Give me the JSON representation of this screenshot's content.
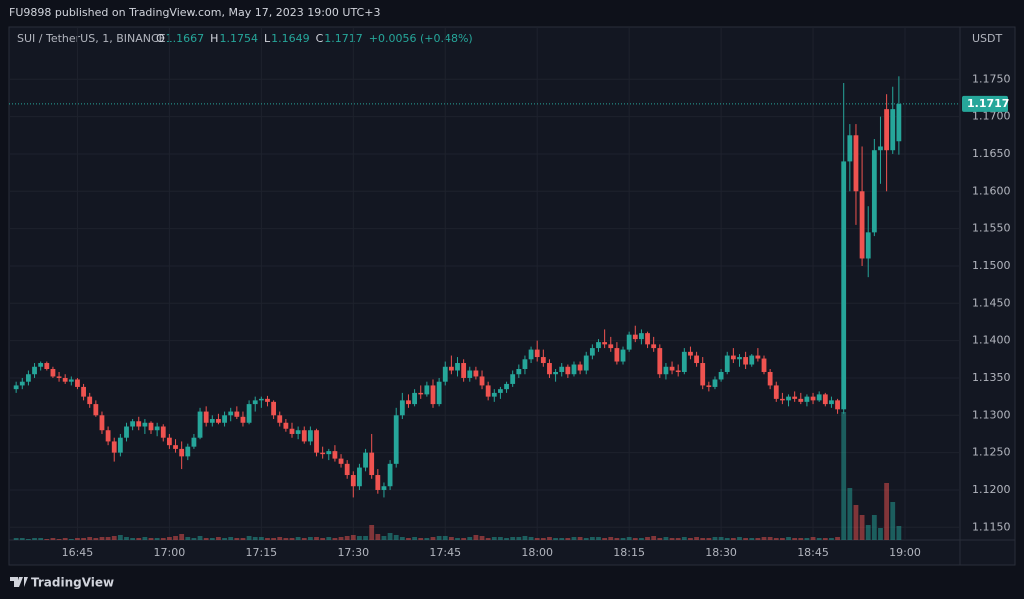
{
  "header": {
    "published": "FU9898 published on TradingView.com, May 17, 2023 19:00 UTC+3",
    "logo": "TradingView"
  },
  "chart_data": {
    "type": "candlestick",
    "symbol": "SUI / TetherUS, 1, BINANCE",
    "currency": "USDT",
    "legend_labels": [
      "O",
      "H",
      "L",
      "C"
    ],
    "change": "+0.0056 (+0.48%)",
    "up_color": "#26a69a",
    "down_color": "#ef5350",
    "grid": true,
    "ylim": [
      1.1133,
      1.182
    ],
    "yticks": [
      {
        "value": 1.115,
        "label": "1.1150"
      },
      {
        "value": 1.12,
        "label": "1.1200"
      },
      {
        "value": 1.125,
        "label": "1.1250"
      },
      {
        "value": 1.13,
        "label": "1.1300"
      },
      {
        "value": 1.135,
        "label": "1.1350"
      },
      {
        "value": 1.14,
        "label": "1.1400"
      },
      {
        "value": 1.145,
        "label": "1.1450"
      },
      {
        "value": 1.15,
        "label": "1.1500"
      },
      {
        "value": 1.155,
        "label": "1.1550"
      },
      {
        "value": 1.16,
        "label": "1.1600"
      },
      {
        "value": 1.165,
        "label": "1.1650"
      },
      {
        "value": 1.17,
        "label": "1.1700"
      },
      {
        "value": 1.175,
        "label": "1.1750"
      }
    ],
    "categories": [
      null,
      null,
      null,
      null,
      null,
      null,
      null,
      null,
      null,
      null,
      "16:45",
      null,
      null,
      null,
      null,
      null,
      null,
      null,
      null,
      null,
      null,
      null,
      null,
      null,
      null,
      "17:00",
      null,
      null,
      null,
      null,
      null,
      null,
      null,
      null,
      null,
      null,
      null,
      null,
      null,
      null,
      "17:15",
      null,
      null,
      null,
      null,
      null,
      null,
      null,
      null,
      null,
      null,
      null,
      null,
      null,
      null,
      "17:30",
      null,
      null,
      null,
      null,
      null,
      null,
      null,
      null,
      null,
      null,
      null,
      null,
      null,
      null,
      "17:45",
      null,
      null,
      null,
      null,
      null,
      null,
      null,
      null,
      null,
      null,
      null,
      null,
      null,
      null,
      "18:00",
      null,
      null,
      null,
      null,
      null,
      null,
      null,
      null,
      null,
      null,
      null,
      null,
      null,
      null,
      "18:15",
      null,
      null,
      null,
      null,
      null,
      null,
      null,
      null,
      null,
      null,
      null,
      null,
      null,
      null,
      "18:30",
      null,
      null,
      null,
      null,
      null,
      null,
      null,
      null,
      null,
      null,
      null,
      null,
      null,
      null,
      "18:45",
      null,
      null,
      null,
      null,
      null,
      null,
      null,
      null,
      null,
      null,
      null,
      null,
      null,
      null,
      "19:00"
    ],
    "ohlc": [
      [
        1.1335,
        1.1345,
        1.133,
        1.134
      ],
      [
        1.134,
        1.135,
        1.1335,
        1.1345
      ],
      [
        1.1345,
        1.136,
        1.134,
        1.1355
      ],
      [
        1.1355,
        1.137,
        1.135,
        1.1365
      ],
      [
        1.1365,
        1.1372,
        1.136,
        1.137
      ],
      [
        1.137,
        1.1372,
        1.136,
        1.1362
      ],
      [
        1.1362,
        1.1365,
        1.135,
        1.1352
      ],
      [
        1.1352,
        1.1358,
        1.1345,
        1.135
      ],
      [
        1.135,
        1.1355,
        1.1342,
        1.1345
      ],
      [
        1.1345,
        1.1352,
        1.134,
        1.1348
      ],
      [
        1.1348,
        1.135,
        1.1335,
        1.1338
      ],
      [
        1.1338,
        1.1342,
        1.132,
        1.1325
      ],
      [
        1.1325,
        1.133,
        1.131,
        1.1315
      ],
      [
        1.1315,
        1.132,
        1.1298,
        1.13
      ],
      [
        1.13,
        1.1305,
        1.1275,
        1.128
      ],
      [
        1.128,
        1.1285,
        1.126,
        1.1265
      ],
      [
        1.1265,
        1.127,
        1.1238,
        1.125
      ],
      [
        1.125,
        1.1275,
        1.1245,
        1.127
      ],
      [
        1.127,
        1.129,
        1.1265,
        1.1285
      ],
      [
        1.1285,
        1.1295,
        1.128,
        1.1292
      ],
      [
        1.1292,
        1.1298,
        1.128,
        1.1285
      ],
      [
        1.1285,
        1.1295,
        1.1275,
        1.129
      ],
      [
        1.129,
        1.1292,
        1.1275,
        1.128
      ],
      [
        1.128,
        1.129,
        1.1272,
        1.1285
      ],
      [
        1.1285,
        1.1288,
        1.1265,
        1.127
      ],
      [
        1.127,
        1.1275,
        1.1255,
        1.126
      ],
      [
        1.126,
        1.1268,
        1.125,
        1.1255
      ],
      [
        1.1255,
        1.1265,
        1.1228,
        1.1245
      ],
      [
        1.1245,
        1.1262,
        1.124,
        1.1258
      ],
      [
        1.1258,
        1.1275,
        1.1255,
        1.127
      ],
      [
        1.127,
        1.131,
        1.1268,
        1.1305
      ],
      [
        1.1305,
        1.1312,
        1.1285,
        1.129
      ],
      [
        1.129,
        1.13,
        1.1285,
        1.1295
      ],
      [
        1.1295,
        1.1302,
        1.1288,
        1.129
      ],
      [
        1.129,
        1.1305,
        1.1285,
        1.13
      ],
      [
        1.13,
        1.131,
        1.1292,
        1.1305
      ],
      [
        1.1305,
        1.1312,
        1.1295,
        1.1298
      ],
      [
        1.1298,
        1.1305,
        1.1285,
        1.129
      ],
      [
        1.129,
        1.132,
        1.1288,
        1.1315
      ],
      [
        1.1315,
        1.1325,
        1.1305,
        1.132
      ],
      [
        1.132,
        1.1325,
        1.131,
        1.1322
      ],
      [
        1.1322,
        1.1326,
        1.1312,
        1.1318
      ],
      [
        1.1318,
        1.132,
        1.1295,
        1.13
      ],
      [
        1.13,
        1.1305,
        1.1285,
        1.129
      ],
      [
        1.129,
        1.1295,
        1.1278,
        1.1282
      ],
      [
        1.1282,
        1.129,
        1.127,
        1.1275
      ],
      [
        1.1275,
        1.1285,
        1.1268,
        1.128
      ],
      [
        1.128,
        1.1285,
        1.1262,
        1.1265
      ],
      [
        1.1265,
        1.1285,
        1.126,
        1.128
      ],
      [
        1.128,
        1.1282,
        1.1245,
        1.125
      ],
      [
        1.125,
        1.1258,
        1.1242,
        1.1248
      ],
      [
        1.1248,
        1.1255,
        1.124,
        1.1252
      ],
      [
        1.1252,
        1.126,
        1.1238,
        1.1242
      ],
      [
        1.1242,
        1.1248,
        1.123,
        1.1235
      ],
      [
        1.1235,
        1.124,
        1.1215,
        1.122
      ],
      [
        1.122,
        1.1225,
        1.119,
        1.1205
      ],
      [
        1.1205,
        1.1235,
        1.12,
        1.123
      ],
      [
        1.123,
        1.1255,
        1.1225,
        1.125
      ],
      [
        1.125,
        1.1275,
        1.1215,
        1.122
      ],
      [
        1.122,
        1.1228,
        1.1195,
        1.12
      ],
      [
        1.12,
        1.121,
        1.119,
        1.1205
      ],
      [
        1.1205,
        1.124,
        1.12,
        1.1235
      ],
      [
        1.1235,
        1.131,
        1.123,
        1.13
      ],
      [
        1.13,
        1.133,
        1.1295,
        1.132
      ],
      [
        1.132,
        1.1328,
        1.131,
        1.1315
      ],
      [
        1.1315,
        1.1335,
        1.1312,
        1.133
      ],
      [
        1.133,
        1.134,
        1.1322,
        1.1328
      ],
      [
        1.1328,
        1.1345,
        1.1325,
        1.134
      ],
      [
        1.134,
        1.1348,
        1.131,
        1.1315
      ],
      [
        1.1315,
        1.135,
        1.1312,
        1.1345
      ],
      [
        1.1345,
        1.1372,
        1.134,
        1.1365
      ],
      [
        1.1365,
        1.138,
        1.1355,
        1.136
      ],
      [
        1.136,
        1.1378,
        1.1352,
        1.137
      ],
      [
        1.137,
        1.1375,
        1.1345,
        1.135
      ],
      [
        1.135,
        1.1365,
        1.1345,
        1.136
      ],
      [
        1.136,
        1.1365,
        1.1348,
        1.1352
      ],
      [
        1.1352,
        1.136,
        1.1335,
        1.134
      ],
      [
        1.134,
        1.1345,
        1.132,
        1.1325
      ],
      [
        1.1325,
        1.1335,
        1.1318,
        1.133
      ],
      [
        1.133,
        1.1338,
        1.1322,
        1.1335
      ],
      [
        1.1335,
        1.1345,
        1.133,
        1.1342
      ],
      [
        1.1342,
        1.136,
        1.1338,
        1.1355
      ],
      [
        1.1355,
        1.1368,
        1.135,
        1.1362
      ],
      [
        1.1362,
        1.138,
        1.1355,
        1.1375
      ],
      [
        1.1375,
        1.1392,
        1.137,
        1.1388
      ],
      [
        1.1388,
        1.14,
        1.1372,
        1.1378
      ],
      [
        1.1378,
        1.1388,
        1.1365,
        1.137
      ],
      [
        1.137,
        1.1375,
        1.135,
        1.1355
      ],
      [
        1.1355,
        1.1362,
        1.1345,
        1.1358
      ],
      [
        1.1358,
        1.137,
        1.1352,
        1.1365
      ],
      [
        1.1365,
        1.1368,
        1.135,
        1.1355
      ],
      [
        1.1355,
        1.1372,
        1.1352,
        1.1368
      ],
      [
        1.1368,
        1.1372,
        1.1355,
        1.136
      ],
      [
        1.136,
        1.1385,
        1.1355,
        1.138
      ],
      [
        1.138,
        1.1395,
        1.1375,
        1.139
      ],
      [
        1.139,
        1.1402,
        1.1385,
        1.1398
      ],
      [
        1.1398,
        1.1415,
        1.139,
        1.1395
      ],
      [
        1.1395,
        1.1405,
        1.1385,
        1.139
      ],
      [
        1.139,
        1.1398,
        1.1368,
        1.1372
      ],
      [
        1.1372,
        1.1392,
        1.1368,
        1.1388
      ],
      [
        1.1388,
        1.1412,
        1.1385,
        1.1408
      ],
      [
        1.1408,
        1.142,
        1.1398,
        1.1402
      ],
      [
        1.1402,
        1.1415,
        1.1395,
        1.141
      ],
      [
        1.141,
        1.1412,
        1.139,
        1.1395
      ],
      [
        1.1395,
        1.1405,
        1.1385,
        1.139
      ],
      [
        1.139,
        1.1395,
        1.135,
        1.1355
      ],
      [
        1.1355,
        1.137,
        1.1348,
        1.1365
      ],
      [
        1.1365,
        1.1372,
        1.1355,
        1.136
      ],
      [
        1.136,
        1.1368,
        1.1352,
        1.1358
      ],
      [
        1.1358,
        1.139,
        1.1355,
        1.1385
      ],
      [
        1.1385,
        1.1392,
        1.1375,
        1.138
      ],
      [
        1.138,
        1.1385,
        1.1365,
        1.137
      ],
      [
        1.137,
        1.1378,
        1.1335,
        1.134
      ],
      [
        1.134,
        1.1345,
        1.1332,
        1.1338
      ],
      [
        1.1338,
        1.1352,
        1.1335,
        1.1348
      ],
      [
        1.1348,
        1.1362,
        1.1345,
        1.1358
      ],
      [
        1.1358,
        1.1385,
        1.1355,
        1.138
      ],
      [
        1.138,
        1.139,
        1.137,
        1.1375
      ],
      [
        1.1375,
        1.1382,
        1.1365,
        1.1378
      ],
      [
        1.1378,
        1.1385,
        1.1362,
        1.1368
      ],
      [
        1.1368,
        1.1382,
        1.1365,
        1.138
      ],
      [
        1.138,
        1.139,
        1.1372,
        1.1376
      ],
      [
        1.1376,
        1.138,
        1.1355,
        1.1358
      ],
      [
        1.1358,
        1.1362,
        1.1335,
        1.134
      ],
      [
        1.134,
        1.1345,
        1.1318,
        1.1322
      ],
      [
        1.1322,
        1.133,
        1.1315,
        1.132
      ],
      [
        1.132,
        1.1328,
        1.1312,
        1.1325
      ],
      [
        1.1325,
        1.1332,
        1.1318,
        1.1322
      ],
      [
        1.1322,
        1.133,
        1.1315,
        1.1318
      ],
      [
        1.1318,
        1.1328,
        1.1312,
        1.1325
      ],
      [
        1.1325,
        1.133,
        1.1315,
        1.132
      ],
      [
        1.132,
        1.1332,
        1.1318,
        1.1328
      ],
      [
        1.1328,
        1.133,
        1.1312,
        1.1315
      ],
      [
        1.1315,
        1.1325,
        1.131,
        1.132
      ],
      [
        1.132,
        1.1322,
        1.1302,
        1.1308
      ],
      [
        1.1308,
        1.1745,
        1.1302,
        1.164
      ],
      [
        1.164,
        1.169,
        1.16,
        1.1675
      ],
      [
        1.1675,
        1.169,
        1.1555,
        1.16
      ],
      [
        1.16,
        1.166,
        1.15,
        1.151
      ],
      [
        1.151,
        1.158,
        1.1485,
        1.1545
      ],
      [
        1.1545,
        1.167,
        1.154,
        1.1655
      ],
      [
        1.1655,
        1.17,
        1.161,
        1.166
      ],
      [
        1.171,
        1.173,
        1.16,
        1.1655
      ],
      [
        1.1655,
        1.174,
        1.165,
        1.171
      ],
      [
        1.1667,
        1.1754,
        1.1649,
        1.1717
      ],
      null
    ],
    "volume": [
      2,
      2,
      1,
      2,
      2,
      1,
      2,
      1,
      2,
      1,
      2,
      2,
      3,
      2,
      3,
      3,
      4,
      5,
      3,
      2,
      2,
      3,
      2,
      2,
      2,
      3,
      4,
      6,
      3,
      2,
      4,
      2,
      2,
      3,
      2,
      3,
      2,
      2,
      4,
      3,
      3,
      2,
      2,
      3,
      2,
      2,
      3,
      2,
      3,
      3,
      2,
      3,
      2,
      3,
      4,
      5,
      4,
      4,
      15,
      6,
      4,
      7,
      5,
      3,
      2,
      3,
      2,
      2,
      3,
      4,
      4,
      3,
      2,
      2,
      3,
      5,
      4,
      2,
      3,
      3,
      2,
      3,
      3,
      4,
      3,
      2,
      2,
      3,
      2,
      2,
      2,
      3,
      3,
      2,
      3,
      3,
      2,
      3,
      2,
      2,
      3,
      2,
      2,
      3,
      4,
      2,
      3,
      2,
      2,
      3,
      2,
      3,
      2,
      2,
      3,
      3,
      2,
      2,
      3,
      2,
      2,
      2,
      3,
      3,
      2,
      2,
      3,
      2,
      2,
      2,
      3,
      2,
      2,
      2,
      3,
      128,
      52,
      35,
      25,
      15,
      25,
      12,
      57,
      38,
      14,
      null
    ]
  }
}
